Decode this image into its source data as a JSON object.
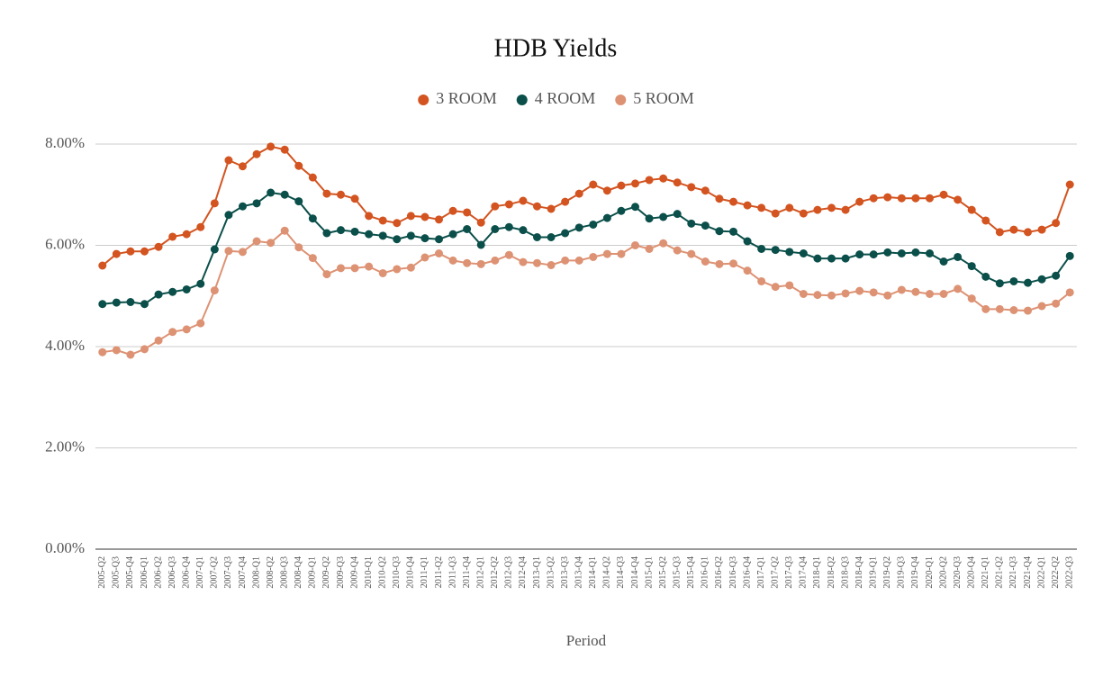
{
  "chart_data": {
    "type": "line",
    "title": "HDB Yields",
    "x_label": "Period",
    "categories": [
      "2005-Q2",
      "2005-Q3",
      "2005-Q4",
      "2006-Q1",
      "2006-Q2",
      "2006-Q3",
      "2006-Q4",
      "2007-Q1",
      "2007-Q2",
      "2007-Q3",
      "2007-Q4",
      "2008-Q1",
      "2008-Q2",
      "2008-Q3",
      "2008-Q4",
      "2009-Q1",
      "2009-Q2",
      "2009-Q3",
      "2009-Q4",
      "2010-Q1",
      "2010-Q2",
      "2010-Q3",
      "2010-Q4",
      "2011-Q1",
      "2011-Q2",
      "2011-Q3",
      "2011-Q4",
      "2012-Q1",
      "2012-Q2",
      "2012-Q3",
      "2012-Q4",
      "2013-Q1",
      "2013-Q2",
      "2013-Q3",
      "2013-Q4",
      "2014-Q1",
      "2014-Q2",
      "2014-Q3",
      "2014-Q4",
      "2015-Q1",
      "2015-Q2",
      "2015-Q3",
      "2015-Q4",
      "2016-Q1",
      "2016-Q2",
      "2016-Q3",
      "2016-Q4",
      "2017-Q1",
      "2017-Q2",
      "2017-Q3",
      "2017-Q4",
      "2018-Q1",
      "2018-Q2",
      "2018-Q3",
      "2018-Q4",
      "2019-Q1",
      "2019-Q2",
      "2019-Q3",
      "2019-Q4",
      "2020-Q1",
      "2020-Q2",
      "2020-Q3",
      "2020-Q4",
      "2021-Q1",
      "2021-Q2",
      "2021-Q3",
      "2021-Q4",
      "2022-Q1",
      "2022-Q2",
      "2022-Q3"
    ],
    "series": [
      {
        "name": "3 ROOM",
        "color": "#d35420",
        "values": [
          5.6,
          5.83,
          5.88,
          5.88,
          5.97,
          6.17,
          6.22,
          6.36,
          6.83,
          7.68,
          7.56,
          7.8,
          7.95,
          7.89,
          7.57,
          7.34,
          7.02,
          7.0,
          6.92,
          6.58,
          6.49,
          6.44,
          6.58,
          6.56,
          6.51,
          6.68,
          6.65,
          6.45,
          6.77,
          6.81,
          6.88,
          6.77,
          6.72,
          6.86,
          7.02,
          7.2,
          7.08,
          7.18,
          7.22,
          7.29,
          7.32,
          7.24,
          7.15,
          7.08,
          6.92,
          6.86,
          6.79,
          6.74,
          6.63,
          6.74,
          6.63,
          6.7,
          6.74,
          6.7,
          6.86,
          6.93,
          6.95,
          6.93,
          6.93,
          6.93,
          7.0,
          6.9,
          6.7,
          6.49,
          6.26,
          6.31,
          6.26,
          6.31,
          6.44,
          7.2
        ]
      },
      {
        "name": "4 ROOM",
        "color": "#0b4f4a",
        "values": [
          4.84,
          4.87,
          4.88,
          4.84,
          5.03,
          5.08,
          5.13,
          5.24,
          5.92,
          6.6,
          6.77,
          6.83,
          7.04,
          7.0,
          6.87,
          6.53,
          6.24,
          6.3,
          6.27,
          6.22,
          6.19,
          6.12,
          6.19,
          6.14,
          6.12,
          6.22,
          6.32,
          6.01,
          6.32,
          6.36,
          6.3,
          6.16,
          6.16,
          6.24,
          6.35,
          6.41,
          6.54,
          6.68,
          6.76,
          6.53,
          6.56,
          6.62,
          6.43,
          6.39,
          6.28,
          6.27,
          6.08,
          5.93,
          5.91,
          5.87,
          5.84,
          5.74,
          5.74,
          5.74,
          5.82,
          5.82,
          5.86,
          5.84,
          5.86,
          5.84,
          5.68,
          5.77,
          5.59,
          5.38,
          5.25,
          5.29,
          5.26,
          5.33,
          5.4,
          5.79
        ]
      },
      {
        "name": "5 ROOM",
        "color": "#dd9274",
        "values": [
          3.89,
          3.93,
          3.84,
          3.95,
          4.12,
          4.29,
          4.34,
          4.46,
          5.11,
          5.89,
          5.87,
          6.08,
          6.05,
          6.29,
          5.96,
          5.75,
          5.43,
          5.55,
          5.55,
          5.58,
          5.45,
          5.53,
          5.56,
          5.76,
          5.84,
          5.7,
          5.65,
          5.63,
          5.7,
          5.81,
          5.67,
          5.65,
          5.61,
          5.7,
          5.7,
          5.77,
          5.83,
          5.83,
          6.0,
          5.93,
          6.04,
          5.9,
          5.83,
          5.68,
          5.63,
          5.64,
          5.5,
          5.29,
          5.18,
          5.21,
          5.04,
          5.02,
          5.01,
          5.05,
          5.1,
          5.07,
          5.01,
          5.12,
          5.08,
          5.04,
          5.04,
          5.14,
          4.95,
          4.74,
          4.74,
          4.72,
          4.71,
          4.8,
          4.85,
          5.07
        ]
      }
    ],
    "ylim": [
      0,
      8
    ],
    "yticks": [
      {
        "value": 0,
        "label": "0.00%"
      },
      {
        "value": 2,
        "label": "2.00%"
      },
      {
        "value": 4,
        "label": "4.00%"
      },
      {
        "value": 6,
        "label": "6.00%"
      },
      {
        "value": 8,
        "label": "8.00%"
      }
    ],
    "grid": true,
    "legend": "top"
  }
}
